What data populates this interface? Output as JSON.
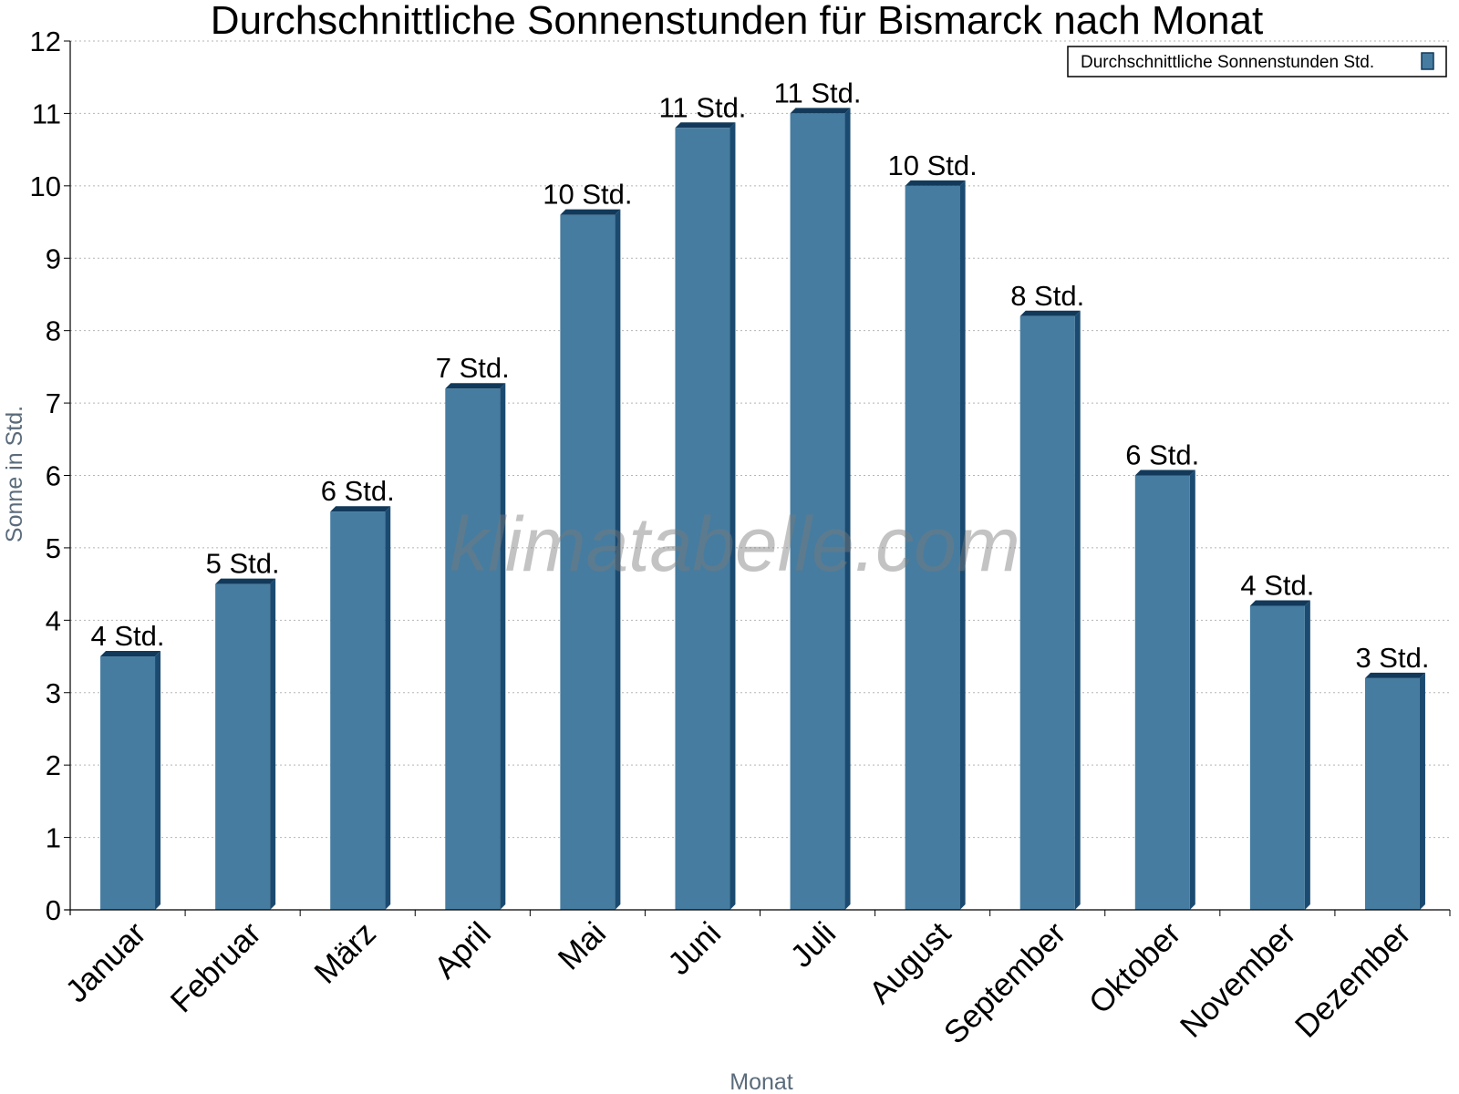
{
  "chart_data": {
    "type": "bar",
    "title": "Durchschnittliche Sonnenstunden für Bismarck nach Monat",
    "xlabel": "Monat",
    "ylabel": "Sonne in Std.",
    "ylim": [
      0,
      12
    ],
    "yticks": [
      "0",
      "1",
      "2",
      "3",
      "4",
      "5",
      "6",
      "7",
      "8",
      "9",
      "10",
      "11",
      "12"
    ],
    "grid": true,
    "legend_position": "top-right",
    "categories": [
      "Januar",
      "Februar",
      "März",
      "April",
      "Mai",
      "Juni",
      "Juli",
      "August",
      "September",
      "Oktober",
      "November",
      "Dezember"
    ],
    "series": [
      {
        "name": "Durchschnittliche Sonnenstunden Std.",
        "color": "#467ca0",
        "values": [
          3.5,
          4.5,
          5.5,
          7.2,
          9.6,
          10.8,
          11.0,
          10.0,
          8.2,
          6.0,
          4.2,
          3.2
        ],
        "labels": [
          "4 Std.",
          "5 Std.",
          "6 Std.",
          "7 Std.",
          "10 Std.",
          "11 Std.",
          "11 Std.",
          "10 Std.",
          "8 Std.",
          "6 Std.",
          "4 Std.",
          "3 Std."
        ]
      }
    ],
    "watermark": "klimatabelle.com"
  }
}
